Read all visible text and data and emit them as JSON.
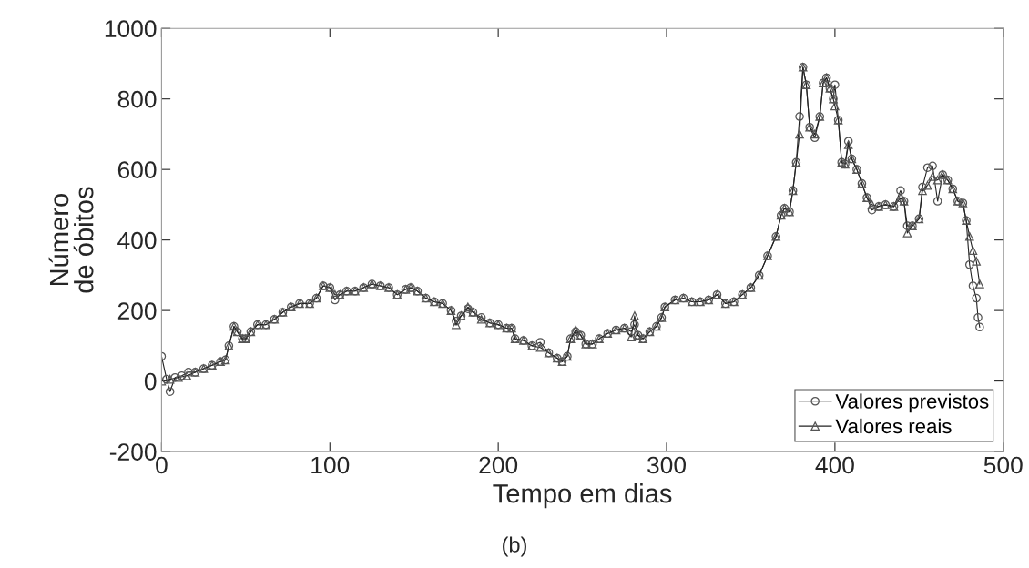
{
  "chart_data": {
    "type": "line",
    "xlabel": "Tempo em dias",
    "ylabel": "Número\nde óbitos",
    "annotations": [
      "(b)"
    ],
    "xlim": [
      0,
      500
    ],
    "ylim": [
      -200,
      1000
    ],
    "xticks": [
      0,
      100,
      200,
      300,
      400,
      500
    ],
    "yticks": [
      -200,
      0,
      200,
      400,
      600,
      800,
      1000
    ],
    "grid": false,
    "legend": "bottom right",
    "series": [
      {
        "name": "Valores previstos",
        "color": "#555555",
        "marker": "circle",
        "x": [
          0,
          3,
          5,
          8,
          12,
          16,
          20,
          25,
          30,
          35,
          38,
          40,
          43,
          45,
          48,
          50,
          53,
          57,
          62,
          67,
          72,
          77,
          82,
          88,
          92,
          96,
          100,
          103,
          106,
          110,
          115,
          120,
          125,
          130,
          135,
          140,
          145,
          148,
          152,
          157,
          162,
          167,
          172,
          175,
          178,
          182,
          185,
          190,
          195,
          200,
          205,
          208,
          210,
          215,
          220,
          225,
          230,
          235,
          238,
          241,
          243,
          246,
          249,
          252,
          256,
          260,
          265,
          270,
          275,
          279,
          281,
          283,
          286,
          290,
          294,
          297,
          299,
          305,
          310,
          315,
          320,
          325,
          330,
          335,
          340,
          345,
          350,
          355,
          360,
          365,
          368,
          370,
          373,
          375,
          377,
          379,
          381,
          383,
          385,
          388,
          391,
          393,
          395,
          397,
          399,
          400,
          402,
          404,
          406,
          408,
          410,
          413,
          416,
          419,
          422,
          426,
          430,
          435,
          439,
          441,
          443,
          446,
          450,
          452,
          455,
          458,
          461,
          464,
          467,
          470,
          473,
          476,
          478,
          480,
          482,
          484,
          485,
          486
        ],
        "values": [
          70,
          5,
          -30,
          10,
          15,
          25,
          25,
          35,
          45,
          55,
          60,
          100,
          155,
          140,
          120,
          120,
          140,
          160,
          160,
          175,
          195,
          210,
          220,
          220,
          235,
          270,
          265,
          230,
          245,
          255,
          255,
          265,
          275,
          270,
          265,
          245,
          260,
          265,
          255,
          235,
          225,
          220,
          200,
          170,
          185,
          205,
          195,
          180,
          165,
          160,
          150,
          150,
          120,
          115,
          100,
          110,
          80,
          65,
          55,
          70,
          120,
          140,
          130,
          105,
          105,
          120,
          135,
          145,
          150,
          140,
          160,
          130,
          120,
          140,
          155,
          180,
          210,
          230,
          235,
          225,
          225,
          230,
          245,
          220,
          225,
          245,
          265,
          300,
          355,
          410,
          470,
          490,
          480,
          540,
          620,
          750,
          890,
          840,
          720,
          690,
          750,
          845,
          860,
          830,
          800,
          840,
          740,
          620,
          615,
          680,
          630,
          600,
          560,
          520,
          485,
          495,
          500,
          495,
          540,
          510,
          440,
          440,
          460,
          550,
          605,
          610,
          510,
          585,
          570,
          545,
          510,
          505,
          455,
          330,
          270,
          235,
          180,
          153
        ]
      },
      {
        "name": "Valores reais",
        "color": "#555555",
        "marker": "triangle",
        "x": [
          0,
          5,
          10,
          15,
          20,
          25,
          30,
          35,
          38,
          40,
          43,
          45,
          48,
          50,
          53,
          57,
          62,
          67,
          72,
          77,
          82,
          88,
          92,
          96,
          100,
          103,
          106,
          110,
          115,
          120,
          125,
          130,
          135,
          140,
          145,
          148,
          152,
          157,
          162,
          167,
          172,
          175,
          178,
          182,
          185,
          190,
          195,
          200,
          205,
          208,
          210,
          215,
          220,
          225,
          230,
          235,
          238,
          241,
          243,
          246,
          249,
          252,
          256,
          260,
          265,
          270,
          275,
          279,
          281,
          283,
          286,
          290,
          294,
          297,
          299,
          305,
          310,
          315,
          320,
          325,
          330,
          335,
          340,
          345,
          350,
          355,
          360,
          365,
          368,
          370,
          373,
          375,
          377,
          379,
          381,
          383,
          385,
          388,
          391,
          393,
          395,
          397,
          399,
          400,
          402,
          404,
          406,
          408,
          410,
          413,
          416,
          419,
          422,
          426,
          430,
          435,
          439,
          441,
          443,
          446,
          450,
          452,
          455,
          458,
          461,
          464,
          467,
          470,
          473,
          476,
          478,
          480,
          482,
          484,
          486
        ],
        "values": [
          0,
          5,
          10,
          15,
          25,
          35,
          45,
          55,
          60,
          100,
          155,
          140,
          120,
          120,
          140,
          160,
          160,
          175,
          195,
          210,
          220,
          220,
          235,
          270,
          265,
          245,
          245,
          255,
          255,
          265,
          275,
          270,
          265,
          245,
          260,
          265,
          255,
          235,
          225,
          220,
          200,
          160,
          185,
          210,
          195,
          175,
          165,
          160,
          150,
          150,
          120,
          115,
          100,
          95,
          80,
          65,
          55,
          70,
          120,
          145,
          130,
          105,
          105,
          120,
          135,
          145,
          150,
          125,
          185,
          130,
          120,
          140,
          155,
          180,
          210,
          230,
          235,
          225,
          225,
          230,
          245,
          220,
          225,
          245,
          265,
          300,
          355,
          410,
          470,
          490,
          480,
          540,
          620,
          700,
          890,
          840,
          720,
          700,
          750,
          845,
          860,
          830,
          800,
          780,
          740,
          620,
          615,
          670,
          630,
          600,
          560,
          520,
          500,
          495,
          500,
          495,
          520,
          510,
          420,
          440,
          460,
          540,
          555,
          580,
          570,
          585,
          570,
          545,
          510,
          505,
          455,
          410,
          370,
          340,
          275
        ]
      }
    ]
  }
}
